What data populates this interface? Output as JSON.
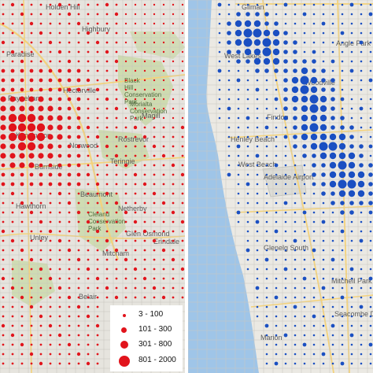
{
  "colors": {
    "left_dots": "#e1141c",
    "right_dots": "#1a4fc2",
    "water": "#9fc5e8",
    "park": "#c9d9a8",
    "road": "#f4d27a"
  },
  "left_map": {
    "places": [
      "Holden Hill",
      "Highbury",
      "Paradise",
      "Payneham",
      "Hectorville",
      "Norwood",
      "Kensington",
      "Burnside",
      "Beaumont",
      "Hawthorn",
      "Netherby",
      "Glen Osmond",
      "Unley",
      "Mitcham",
      "Erindale",
      "Magill",
      "Rostrevor",
      "Teringie",
      "Belair"
    ],
    "parks": [
      "Black Hill Conservation Park",
      "Morialta Conservation Park",
      "Cleland Conservation Park"
    ]
  },
  "right_map": {
    "places": [
      "Gilman",
      "Angle Park",
      "Woodville",
      "West Lakes",
      "Findon",
      "Henley Beach",
      "West Beach",
      "Adelaide Airport",
      "Glenelg South",
      "Mitchell Park",
      "Seacombe Downs",
      "Marion"
    ],
    "airport": "Adelaide Airport"
  },
  "legend": {
    "items": [
      {
        "label": "3 - 100",
        "size": 4
      },
      {
        "label": "101 - 300",
        "size": 7
      },
      {
        "label": "301 - 800",
        "size": 10
      },
      {
        "label": "801 - 2000",
        "size": 14
      }
    ]
  }
}
